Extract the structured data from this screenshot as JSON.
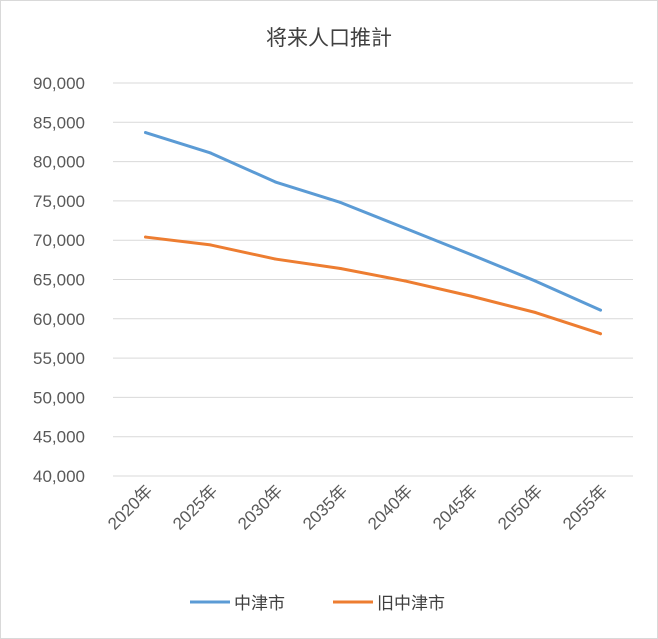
{
  "chart_data": {
    "type": "line",
    "title": "将来人口推計",
    "categories": [
      "2020年",
      "2025年",
      "2030年",
      "2035年",
      "2040年",
      "2045年",
      "2050年",
      "2055年"
    ],
    "ylim": [
      40000,
      90000
    ],
    "ytick_step": 5000,
    "ytick_labels": [
      "40,000",
      "45,000",
      "50,000",
      "55,000",
      "60,000",
      "65,000",
      "70,000",
      "75,000",
      "80,000",
      "85,000",
      "90,000"
    ],
    "grid": true,
    "legend_position": "bottom",
    "series": [
      {
        "name": "中津市",
        "color": "#5b9bd5",
        "values": [
          83700,
          81100,
          77400,
          74800,
          71500,
          68200,
          64800,
          61100
        ]
      },
      {
        "name": "旧中津市",
        "color": "#ed7d31",
        "values": [
          70400,
          69400,
          67600,
          66400,
          64800,
          62900,
          60800,
          58100
        ]
      }
    ]
  }
}
